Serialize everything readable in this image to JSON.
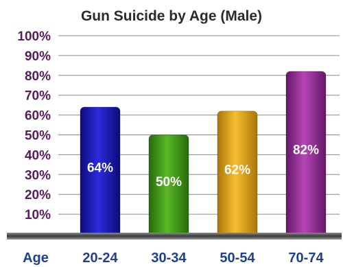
{
  "chart_data": {
    "type": "bar",
    "title": "Gun Suicide by Age (Male)",
    "xlabel": "Age",
    "ylabel": "",
    "categories": [
      "20-24",
      "30-34",
      "50-54",
      "70-74"
    ],
    "values": [
      64,
      50,
      62,
      82
    ],
    "value_labels": [
      "64%",
      "50%",
      "62%",
      "82%"
    ],
    "ylim": [
      0,
      100
    ],
    "yticks": [
      10,
      20,
      30,
      40,
      50,
      60,
      70,
      80,
      90,
      100
    ],
    "ytick_labels": [
      "10%",
      "20%",
      "30%",
      "40%",
      "50%",
      "60%",
      "70%",
      "80%",
      "90%",
      "100%"
    ],
    "grid": true,
    "colors": [
      "#1c1cb8",
      "#3f9a16",
      "#e3a512",
      "#9a2a9c"
    ]
  }
}
